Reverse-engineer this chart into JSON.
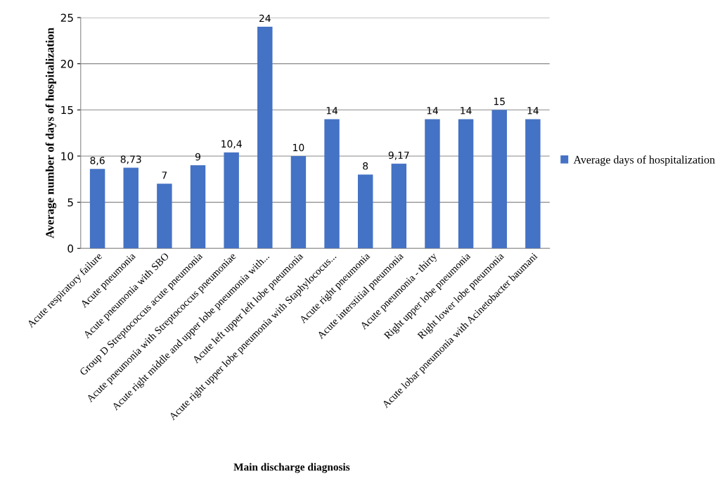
{
  "chart_data": {
    "type": "bar",
    "xlabel": "Main discharge diagnosis",
    "ylabel": "Average number of days of hospitalization",
    "categories": [
      "Acute respiratory failure",
      "Acute pneumonia",
      "Acute pneumonia with SBO",
      "Group D Streptococcus acute pneumonia",
      "Acute pneumonia with Streptococcus pneumoniae",
      "Acute right middle and upper lobe pneumonia with...",
      "Acute left upper left lobe pneumonia",
      "Acute right upper lobe pneumonia with Staphylococus...",
      "Acute right pneumonia",
      "Acute interstitial pneumonia",
      "Acute pneumonia - thirty",
      "Right upper lobe pneumonia",
      "Right lower lobe pneumonia",
      "Acute lobar pneumonia with Acinetobacter baumani"
    ],
    "series": [
      {
        "name": "Average days of hospitalization",
        "color": "#4472c4",
        "values": [
          8.6,
          8.73,
          7,
          9,
          10.4,
          24,
          10,
          14,
          8,
          9.17,
          14,
          14,
          15,
          14
        ],
        "value_labels": [
          "8,6",
          "8,73",
          "7",
          "9",
          "10,4",
          "24",
          "10",
          "14",
          "8",
          "9,17",
          "14",
          "14",
          "15",
          "14"
        ]
      }
    ],
    "ylim": [
      0,
      25
    ],
    "yticks": [
      0,
      5,
      10,
      15,
      20,
      25
    ],
    "grid": "y",
    "legend": "right"
  }
}
